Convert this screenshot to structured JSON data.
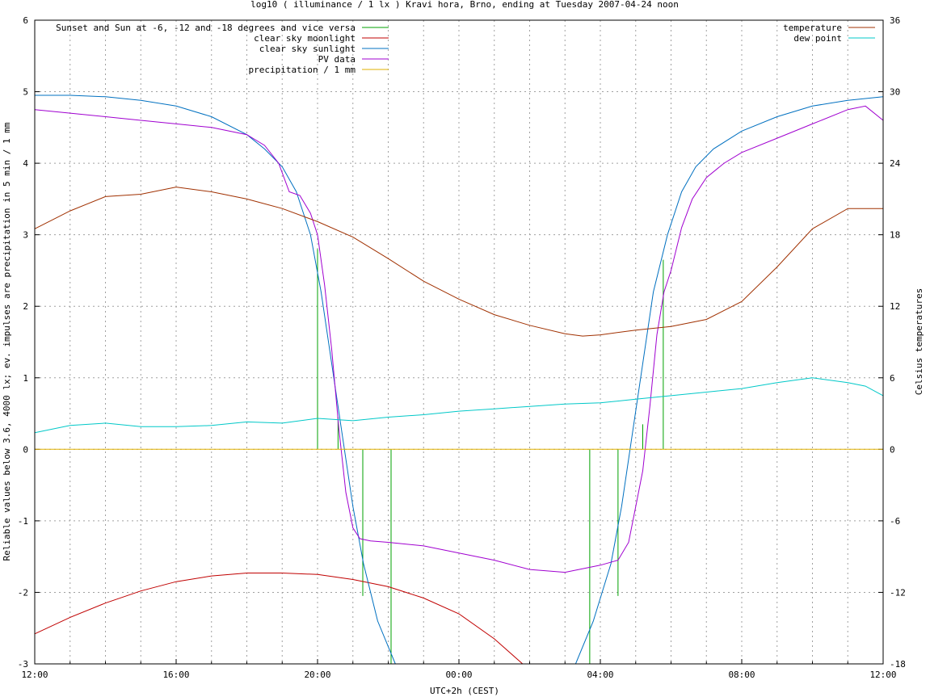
{
  "chart_data": {
    "type": "line",
    "title": "log10 ( illuminance / 1 lx ) Kravi hora, Brno, ending at Tuesday 2007-04-24 noon",
    "xlabel": "UTC+2h (CEST)",
    "ylabel_left": "Reliable values below 3.6, 4000 lx; ev. impulses are precipitation in 5 min / 1 mm",
    "ylabel_right": "Celsius temperatures",
    "x_unit": "hours since 12:00 (day before)",
    "xlim": [
      0,
      24
    ],
    "ylim_left": [
      -3,
      6
    ],
    "ylim_right": [
      -18,
      36
    ],
    "x_ticks": [
      {
        "x": 0,
        "label": "12:00"
      },
      {
        "x": 4,
        "label": "16:00"
      },
      {
        "x": 8,
        "label": "20:00"
      },
      {
        "x": 12,
        "label": "00:00"
      },
      {
        "x": 16,
        "label": "04:00"
      },
      {
        "x": 20,
        "label": "08:00"
      },
      {
        "x": 24,
        "label": "12:00"
      }
    ],
    "y_ticks_left": [
      "-3",
      "-2",
      "-1",
      "0",
      "1",
      "2",
      "3",
      "4",
      "5",
      "6"
    ],
    "y_ticks_right": [
      "-18",
      "-12",
      "-6",
      "0",
      "6",
      "12",
      "18",
      "24",
      "30",
      "36"
    ],
    "grid": true,
    "legend_left_position": "top-left",
    "legend_right_position": "top-right",
    "series": [
      {
        "name": "Sunset and Sun at -6, -12 and -18 degrees and vice versa",
        "color": "#00a000",
        "axis": "left",
        "kind": "impulses",
        "impulses": [
          [
            8.0,
            0,
            2.8
          ],
          [
            8.58,
            0,
            0.45
          ],
          [
            9.28,
            0,
            -2.05
          ],
          [
            10.08,
            0,
            -3
          ],
          [
            15.7,
            0,
            -3
          ],
          [
            16.5,
            0,
            -2.05
          ],
          [
            17.2,
            0,
            0.35
          ],
          [
            17.78,
            0,
            2.65
          ]
        ]
      },
      {
        "name": "clear sky moonlight",
        "color": "#c00000",
        "axis": "left",
        "x": [
          0,
          1,
          2,
          3,
          4,
          5,
          6,
          7,
          8,
          9,
          10,
          11,
          12,
          13,
          13.8
        ],
        "y": [
          -2.58,
          -2.35,
          -2.15,
          -1.98,
          -1.85,
          -1.77,
          -1.73,
          -1.73,
          -1.75,
          -1.82,
          -1.92,
          -2.08,
          -2.3,
          -2.65,
          -3.0
        ]
      },
      {
        "name": "clear sky sunlight",
        "color": "#0070c0",
        "axis": "left",
        "x": [
          0,
          1,
          2,
          3,
          4,
          5,
          6,
          6.5,
          7,
          7.4,
          7.8,
          8.1,
          8.4,
          8.7,
          9.0,
          9.3,
          9.7,
          10.2,
          15.3,
          15.8,
          16.3,
          16.6,
          16.9,
          17.2,
          17.5,
          17.9,
          18.3,
          18.7,
          19.2,
          20,
          21,
          22,
          23,
          24
        ],
        "y": [
          4.95,
          4.95,
          4.93,
          4.88,
          4.8,
          4.65,
          4.4,
          4.2,
          3.95,
          3.6,
          3.0,
          2.2,
          1.2,
          0.2,
          -0.8,
          -1.6,
          -2.4,
          -3.0,
          -3.0,
          -2.4,
          -1.6,
          -0.8,
          0.2,
          1.2,
          2.2,
          3.0,
          3.6,
          3.95,
          4.2,
          4.45,
          4.65,
          4.8,
          4.88,
          4.93
        ]
      },
      {
        "name": "PV data",
        "color": "#a000d0",
        "axis": "left",
        "x": [
          0,
          1,
          2,
          3,
          4,
          5,
          6,
          6.5,
          6.9,
          7.2,
          7.5,
          7.8,
          8.0,
          8.2,
          8.4,
          8.6,
          8.8,
          9.0,
          9.2,
          9.5,
          10,
          11,
          12,
          13,
          14,
          15,
          16,
          16.5,
          16.8,
          17.0,
          17.2,
          17.4,
          17.6,
          17.8,
          18.0,
          18.3,
          18.6,
          19.0,
          19.5,
          20,
          21,
          22,
          23,
          23.5,
          24
        ],
        "y": [
          4.75,
          4.7,
          4.65,
          4.6,
          4.55,
          4.5,
          4.4,
          4.25,
          4.0,
          3.6,
          3.55,
          3.3,
          3.0,
          2.3,
          1.4,
          0.3,
          -0.6,
          -1.1,
          -1.25,
          -1.28,
          -1.3,
          -1.35,
          -1.45,
          -1.55,
          -1.68,
          -1.72,
          -1.62,
          -1.55,
          -1.3,
          -0.8,
          -0.3,
          0.6,
          1.6,
          2.2,
          2.5,
          3.1,
          3.5,
          3.8,
          4.0,
          4.15,
          4.35,
          4.55,
          4.75,
          4.8,
          4.6
        ]
      },
      {
        "name": "precipitation / 1 mm",
        "color": "#e0b000",
        "axis": "left",
        "x": [
          0,
          24
        ],
        "y": [
          0,
          0
        ]
      },
      {
        "name": "temperature",
        "color": "#a03000",
        "axis": "right",
        "x": [
          0,
          1,
          2,
          3,
          4,
          5,
          6,
          7,
          8,
          9,
          10,
          11,
          12,
          13,
          14,
          15,
          15.5,
          16,
          17,
          18,
          19,
          20,
          21,
          22,
          23,
          23.5,
          24
        ],
        "y": [
          18.5,
          20,
          21.2,
          21.4,
          22,
          21.6,
          21.0,
          20.2,
          19.1,
          17.8,
          16.0,
          14.1,
          12.6,
          11.3,
          10.4,
          9.7,
          9.5,
          9.6,
          10.0,
          10.3,
          10.9,
          12.4,
          15.3,
          18.5,
          20.2,
          20.2,
          20.2
        ]
      },
      {
        "name": "dew point",
        "color": "#00c8c8",
        "axis": "right",
        "x": [
          0,
          1,
          2,
          3,
          4,
          5,
          6,
          7,
          8,
          9,
          10,
          11,
          12,
          13,
          14,
          15,
          16,
          17,
          18,
          19,
          20,
          21,
          22,
          23,
          23.5,
          24
        ],
        "y": [
          1.4,
          2.0,
          2.2,
          1.9,
          1.9,
          2.0,
          2.3,
          2.2,
          2.6,
          2.4,
          2.7,
          2.9,
          3.2,
          3.4,
          3.6,
          3.8,
          3.9,
          4.2,
          4.5,
          4.8,
          5.1,
          5.6,
          6.0,
          5.6,
          5.3,
          4.5
        ]
      }
    ]
  }
}
